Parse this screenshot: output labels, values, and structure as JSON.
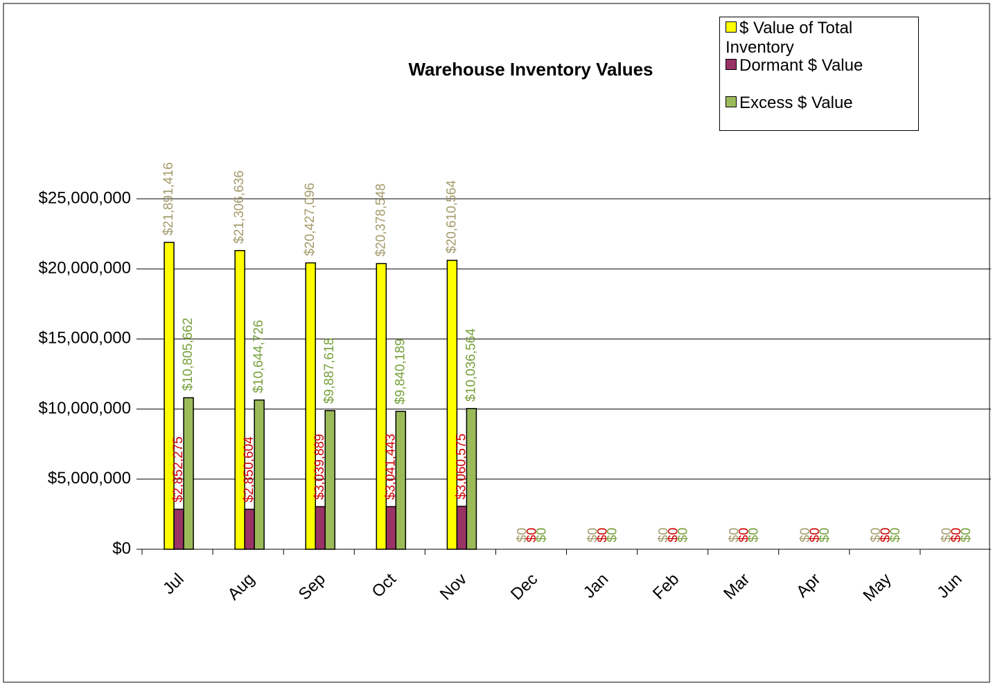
{
  "chart_data": {
    "type": "bar",
    "title": "Warehouse Inventory Values",
    "categories": [
      "Jul",
      "Aug",
      "Sep",
      "Oct",
      "Nov",
      "Dec",
      "Jan",
      "Feb",
      "Mar",
      "Apr",
      "May",
      "Jun"
    ],
    "series": [
      {
        "name": "$ Value of Total Inventory",
        "color": "#ffff00",
        "label_color": "#a39b6b",
        "values": [
          21891416,
          21306636,
          20427096,
          20378548,
          20610564,
          0,
          0,
          0,
          0,
          0,
          0,
          0
        ],
        "value_labels": [
          "$21,891,416",
          "$21,306,636",
          "$20,427,096",
          "$20,378,548",
          "$20,610,564",
          "$0",
          "$0",
          "$0",
          "$0",
          "$0",
          "$0",
          "$0"
        ]
      },
      {
        "name": "Dormant $ Value",
        "color": "#993366",
        "label_color": "#cc0000",
        "values": [
          2852275,
          2850604,
          3039889,
          3041443,
          3060575,
          0,
          0,
          0,
          0,
          0,
          0,
          0
        ],
        "value_labels": [
          "$2,852,275",
          "$2,850,604",
          "$3,039,889",
          "$3,041,443",
          "$3,060,575",
          "$0",
          "$0",
          "$0",
          "$0",
          "$0",
          "$0",
          "$0"
        ]
      },
      {
        "name": "Excess $ Value",
        "color": "#9bbb59",
        "label_color": "#76a03a",
        "values": [
          10805662,
          10644726,
          9887618,
          9840189,
          10036564,
          0,
          0,
          0,
          0,
          0,
          0,
          0
        ],
        "value_labels": [
          "$10,805,662",
          "$10,644,726",
          "$9,887,618",
          "$9,840,189",
          "$10,036,564",
          "$0",
          "$0",
          "$0",
          "$0",
          "$0",
          "$0",
          "$0"
        ]
      }
    ],
    "ylim": [
      0,
      25000000
    ],
    "yticks": [
      {
        "value": 0,
        "label": "$0"
      },
      {
        "value": 5000000,
        "label": "$5,000,000"
      },
      {
        "value": 10000000,
        "label": "$10,000,000"
      },
      {
        "value": 15000000,
        "label": "$15,000,000"
      },
      {
        "value": 20000000,
        "label": "$20,000,000"
      },
      {
        "value": 25000000,
        "label": "$25,000,000"
      }
    ],
    "grid": true,
    "legend": "top-right"
  }
}
